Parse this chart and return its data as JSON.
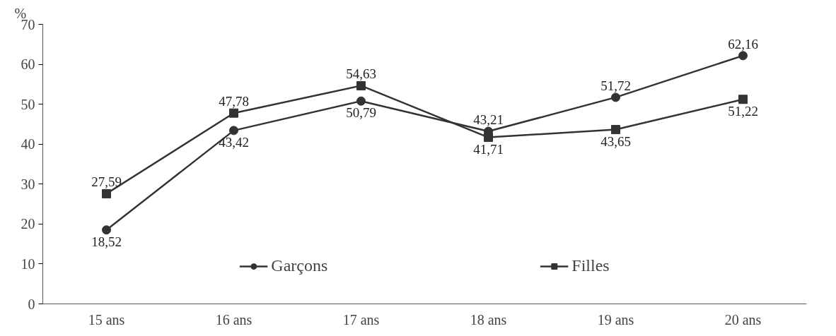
{
  "chart_data": {
    "type": "line",
    "ylabel": "%",
    "categories": [
      "15 ans",
      "16 ans",
      "17 ans",
      "18 ans",
      "19 ans",
      "20 ans"
    ],
    "series": [
      {
        "name": "Garçons",
        "color": "#333333",
        "marker": "circle",
        "values": [
          18.52,
          43.42,
          50.79,
          43.21,
          51.72,
          62.16
        ],
        "value_labels": [
          "18,52",
          "43,42",
          "50,79",
          "43,21",
          "51,72",
          "62,16"
        ]
      },
      {
        "name": "Filles",
        "color": "#333333",
        "marker": "square",
        "values": [
          27.59,
          47.78,
          54.63,
          41.71,
          43.65,
          51.22
        ],
        "value_labels": [
          "27,59",
          "47,78",
          "54,63",
          "41,71",
          "43,65",
          "51,22"
        ]
      }
    ],
    "ylim": [
      0,
      70
    ],
    "yticks": [
      0,
      10,
      20,
      30,
      40,
      50,
      60,
      70
    ],
    "grid": false,
    "legend": "bottom",
    "line_style": "solid"
  }
}
